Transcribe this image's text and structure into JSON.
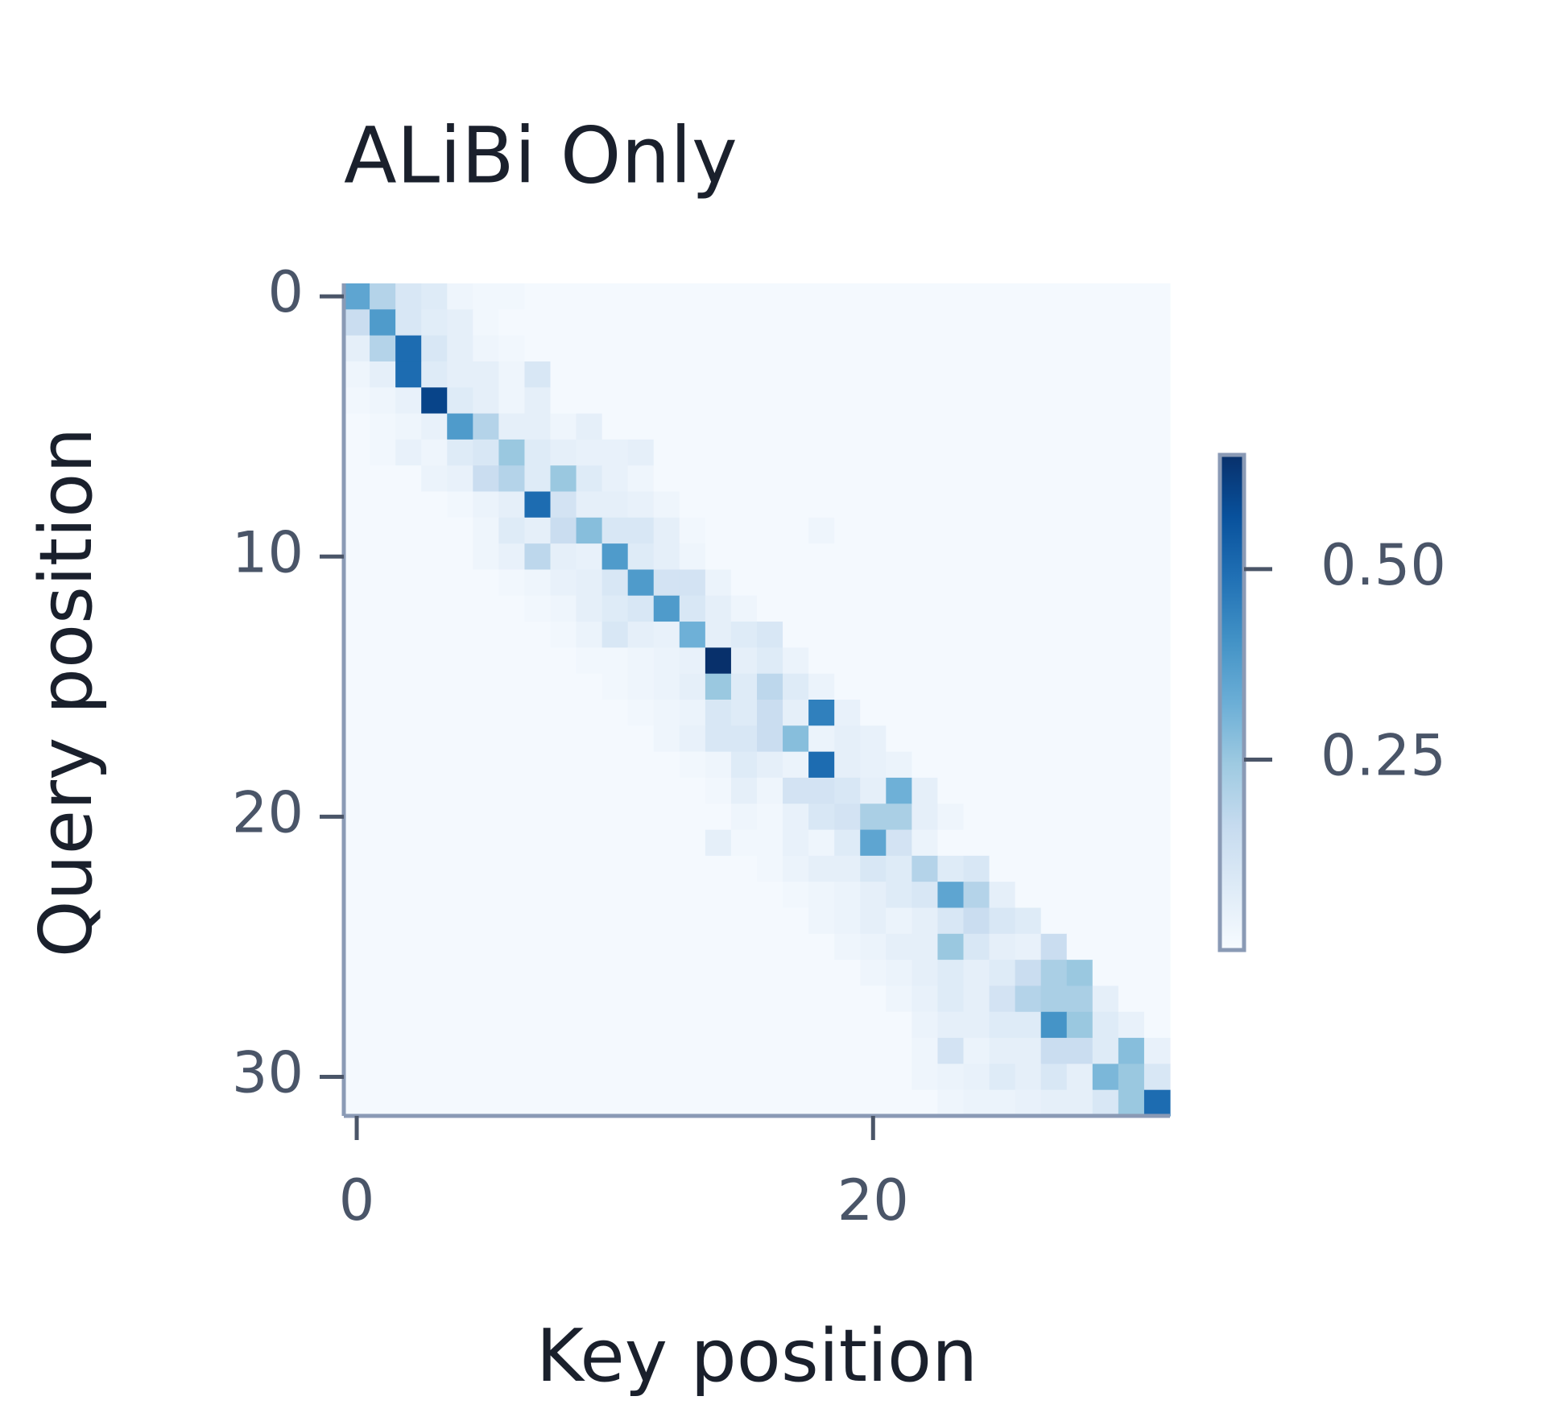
{
  "chart_data": {
    "type": "heatmap",
    "title": "ALiBi Only",
    "x_label": "Key position",
    "y_label": "Query position",
    "colormap": "Blues",
    "clim": [
      0,
      0.65
    ],
    "xlim": [
      -0.5,
      31.5
    ],
    "ylim": [
      -0.5,
      31.5
    ],
    "xticks": [
      0,
      20
    ],
    "yticks": [
      0,
      10,
      20,
      30
    ],
    "colorbar_ticks": [
      0.25,
      {
        "value": 0.5,
        "label": "0.50"
      }
    ],
    "z": [
      [
        0.35,
        0.2,
        0.1,
        0.08,
        0.03,
        0.02,
        0.02,
        0.01,
        0.01,
        0.01,
        0.01,
        0.01,
        0.01,
        0.01,
        0.01,
        0.01,
        0.01,
        0.01,
        0.01,
        0.01,
        0.01,
        0.01,
        0.01,
        0.01,
        0.01,
        0.01,
        0.01,
        0.01,
        0.01,
        0.01,
        0.01,
        0.01
      ],
      [
        0.15,
        0.38,
        0.1,
        0.07,
        0.06,
        0.02,
        0.01,
        0.01,
        0.01,
        0.01,
        0.01,
        0.01,
        0.01,
        0.01,
        0.01,
        0.01,
        0.01,
        0.01,
        0.01,
        0.01,
        0.01,
        0.01,
        0.01,
        0.01,
        0.01,
        0.01,
        0.01,
        0.01,
        0.01,
        0.01,
        0.01,
        0.01
      ],
      [
        0.06,
        0.2,
        0.5,
        0.1,
        0.06,
        0.03,
        0.02,
        0.01,
        0.01,
        0.01,
        0.01,
        0.01,
        0.01,
        0.01,
        0.01,
        0.01,
        0.01,
        0.01,
        0.01,
        0.01,
        0.01,
        0.01,
        0.01,
        0.01,
        0.01,
        0.01,
        0.01,
        0.01,
        0.01,
        0.01,
        0.01,
        0.01
      ],
      [
        0.03,
        0.06,
        0.5,
        0.08,
        0.06,
        0.06,
        0.03,
        0.1,
        0.01,
        0.01,
        0.01,
        0.01,
        0.01,
        0.01,
        0.01,
        0.01,
        0.01,
        0.01,
        0.01,
        0.01,
        0.01,
        0.01,
        0.01,
        0.01,
        0.01,
        0.01,
        0.01,
        0.01,
        0.01,
        0.01,
        0.01,
        0.01
      ],
      [
        0.02,
        0.03,
        0.05,
        0.6,
        0.08,
        0.06,
        0.03,
        0.06,
        0.01,
        0.01,
        0.01,
        0.01,
        0.01,
        0.01,
        0.01,
        0.01,
        0.01,
        0.01,
        0.01,
        0.01,
        0.01,
        0.01,
        0.01,
        0.01,
        0.01,
        0.01,
        0.01,
        0.01,
        0.01,
        0.01,
        0.01,
        0.01
      ],
      [
        0.01,
        0.02,
        0.03,
        0.05,
        0.38,
        0.2,
        0.06,
        0.06,
        0.03,
        0.06,
        0.01,
        0.01,
        0.01,
        0.01,
        0.01,
        0.01,
        0.01,
        0.01,
        0.01,
        0.01,
        0.01,
        0.01,
        0.01,
        0.01,
        0.01,
        0.01,
        0.01,
        0.01,
        0.01,
        0.01,
        0.01,
        0.01
      ],
      [
        0.01,
        0.02,
        0.05,
        0.03,
        0.08,
        0.1,
        0.25,
        0.08,
        0.06,
        0.05,
        0.05,
        0.06,
        0.01,
        0.01,
        0.01,
        0.01,
        0.01,
        0.01,
        0.01,
        0.01,
        0.01,
        0.01,
        0.01,
        0.01,
        0.01,
        0.01,
        0.01,
        0.01,
        0.01,
        0.01,
        0.01,
        0.01
      ],
      [
        0.01,
        0.01,
        0.01,
        0.04,
        0.05,
        0.15,
        0.2,
        0.08,
        0.25,
        0.08,
        0.05,
        0.03,
        0.01,
        0.01,
        0.01,
        0.01,
        0.01,
        0.01,
        0.01,
        0.01,
        0.01,
        0.01,
        0.01,
        0.01,
        0.01,
        0.01,
        0.01,
        0.01,
        0.01,
        0.01,
        0.01,
        0.01
      ],
      [
        0.01,
        0.01,
        0.01,
        0.01,
        0.02,
        0.04,
        0.06,
        0.5,
        0.12,
        0.06,
        0.06,
        0.05,
        0.03,
        0.01,
        0.01,
        0.01,
        0.01,
        0.01,
        0.01,
        0.01,
        0.01,
        0.01,
        0.01,
        0.01,
        0.01,
        0.01,
        0.01,
        0.01,
        0.01,
        0.01,
        0.01,
        0.01
      ],
      [
        0.01,
        0.01,
        0.01,
        0.01,
        0.01,
        0.03,
        0.08,
        0.06,
        0.15,
        0.28,
        0.1,
        0.1,
        0.06,
        0.02,
        0.01,
        0.01,
        0.01,
        0.01,
        0.03,
        0.01,
        0.01,
        0.01,
        0.01,
        0.01,
        0.01,
        0.01,
        0.01,
        0.01,
        0.01,
        0.01,
        0.01,
        0.01
      ],
      [
        0.01,
        0.01,
        0.01,
        0.01,
        0.01,
        0.03,
        0.05,
        0.18,
        0.06,
        0.05,
        0.38,
        0.08,
        0.06,
        0.03,
        0.01,
        0.01,
        0.01,
        0.01,
        0.01,
        0.01,
        0.01,
        0.01,
        0.01,
        0.01,
        0.01,
        0.01,
        0.01,
        0.01,
        0.01,
        0.01,
        0.01,
        0.01
      ],
      [
        0.01,
        0.01,
        0.01,
        0.01,
        0.01,
        0.01,
        0.02,
        0.03,
        0.05,
        0.06,
        0.1,
        0.38,
        0.12,
        0.12,
        0.04,
        0.01,
        0.01,
        0.01,
        0.01,
        0.01,
        0.01,
        0.01,
        0.01,
        0.01,
        0.01,
        0.01,
        0.01,
        0.01,
        0.01,
        0.01,
        0.01,
        0.01
      ],
      [
        0.01,
        0.01,
        0.01,
        0.01,
        0.01,
        0.01,
        0.01,
        0.02,
        0.03,
        0.06,
        0.08,
        0.1,
        0.38,
        0.1,
        0.06,
        0.03,
        0.01,
        0.01,
        0.01,
        0.01,
        0.01,
        0.01,
        0.01,
        0.01,
        0.01,
        0.01,
        0.01,
        0.01,
        0.01,
        0.01,
        0.01,
        0.01
      ],
      [
        0.01,
        0.01,
        0.01,
        0.01,
        0.01,
        0.01,
        0.01,
        0.01,
        0.02,
        0.04,
        0.1,
        0.06,
        0.05,
        0.32,
        0.06,
        0.08,
        0.1,
        0.01,
        0.01,
        0.01,
        0.01,
        0.01,
        0.01,
        0.01,
        0.01,
        0.01,
        0.01,
        0.01,
        0.01,
        0.01,
        0.01,
        0.01
      ],
      [
        0.01,
        0.01,
        0.01,
        0.01,
        0.01,
        0.01,
        0.01,
        0.01,
        0.01,
        0.02,
        0.02,
        0.03,
        0.04,
        0.05,
        0.65,
        0.06,
        0.08,
        0.04,
        0.01,
        0.01,
        0.01,
        0.01,
        0.01,
        0.01,
        0.01,
        0.01,
        0.01,
        0.01,
        0.01,
        0.01,
        0.01,
        0.01
      ],
      [
        0.01,
        0.01,
        0.01,
        0.01,
        0.01,
        0.01,
        0.01,
        0.01,
        0.01,
        0.01,
        0.02,
        0.03,
        0.04,
        0.06,
        0.25,
        0.08,
        0.18,
        0.08,
        0.04,
        0.01,
        0.01,
        0.01,
        0.01,
        0.01,
        0.01,
        0.01,
        0.01,
        0.01,
        0.01,
        0.01,
        0.01,
        0.01
      ],
      [
        0.01,
        0.01,
        0.01,
        0.01,
        0.01,
        0.01,
        0.01,
        0.01,
        0.01,
        0.01,
        0.01,
        0.02,
        0.03,
        0.04,
        0.1,
        0.08,
        0.15,
        0.06,
        0.45,
        0.05,
        0.01,
        0.01,
        0.01,
        0.01,
        0.01,
        0.01,
        0.01,
        0.01,
        0.01,
        0.01,
        0.01,
        0.01
      ],
      [
        0.01,
        0.01,
        0.01,
        0.01,
        0.01,
        0.01,
        0.01,
        0.01,
        0.01,
        0.01,
        0.01,
        0.01,
        0.03,
        0.05,
        0.1,
        0.1,
        0.15,
        0.28,
        0.04,
        0.06,
        0.05,
        0.01,
        0.01,
        0.01,
        0.01,
        0.01,
        0.01,
        0.01,
        0.01,
        0.01,
        0.01,
        0.01
      ],
      [
        0.01,
        0.01,
        0.01,
        0.01,
        0.01,
        0.01,
        0.01,
        0.01,
        0.01,
        0.01,
        0.01,
        0.01,
        0.01,
        0.02,
        0.03,
        0.08,
        0.06,
        0.04,
        0.5,
        0.06,
        0.05,
        0.04,
        0.01,
        0.01,
        0.01,
        0.01,
        0.01,
        0.01,
        0.01,
        0.01,
        0.01,
        0.01
      ],
      [
        0.01,
        0.01,
        0.01,
        0.01,
        0.01,
        0.01,
        0.01,
        0.01,
        0.01,
        0.01,
        0.01,
        0.01,
        0.01,
        0.01,
        0.02,
        0.06,
        0.03,
        0.12,
        0.12,
        0.1,
        0.06,
        0.32,
        0.06,
        0.01,
        0.01,
        0.01,
        0.01,
        0.01,
        0.01,
        0.01,
        0.01,
        0.01
      ],
      [
        0.01,
        0.01,
        0.01,
        0.01,
        0.01,
        0.01,
        0.01,
        0.01,
        0.01,
        0.01,
        0.01,
        0.01,
        0.01,
        0.01,
        0.01,
        0.03,
        0.02,
        0.05,
        0.1,
        0.12,
        0.22,
        0.22,
        0.06,
        0.03,
        0.01,
        0.01,
        0.01,
        0.01,
        0.01,
        0.01,
        0.01,
        0.01
      ],
      [
        0.01,
        0.01,
        0.01,
        0.01,
        0.01,
        0.01,
        0.01,
        0.01,
        0.01,
        0.01,
        0.01,
        0.01,
        0.01,
        0.01,
        0.06,
        0.02,
        0.02,
        0.05,
        0.03,
        0.08,
        0.35,
        0.12,
        0.04,
        0.01,
        0.01,
        0.01,
        0.01,
        0.01,
        0.01,
        0.01,
        0.01,
        0.01
      ],
      [
        0.01,
        0.01,
        0.01,
        0.01,
        0.01,
        0.01,
        0.01,
        0.01,
        0.01,
        0.01,
        0.01,
        0.01,
        0.01,
        0.01,
        0.01,
        0.01,
        0.02,
        0.04,
        0.06,
        0.06,
        0.1,
        0.08,
        0.2,
        0.08,
        0.1,
        0.01,
        0.01,
        0.01,
        0.01,
        0.01,
        0.01,
        0.01
      ],
      [
        0.01,
        0.01,
        0.01,
        0.01,
        0.01,
        0.01,
        0.01,
        0.01,
        0.01,
        0.01,
        0.01,
        0.01,
        0.01,
        0.01,
        0.01,
        0.01,
        0.01,
        0.02,
        0.03,
        0.04,
        0.06,
        0.08,
        0.1,
        0.35,
        0.2,
        0.06,
        0.01,
        0.01,
        0.01,
        0.01,
        0.01,
        0.01
      ],
      [
        0.01,
        0.01,
        0.01,
        0.01,
        0.01,
        0.01,
        0.01,
        0.01,
        0.01,
        0.01,
        0.01,
        0.01,
        0.01,
        0.01,
        0.01,
        0.01,
        0.01,
        0.01,
        0.03,
        0.04,
        0.06,
        0.04,
        0.06,
        0.1,
        0.15,
        0.1,
        0.08,
        0.01,
        0.01,
        0.01,
        0.01,
        0.01
      ],
      [
        0.01,
        0.01,
        0.01,
        0.01,
        0.01,
        0.01,
        0.01,
        0.01,
        0.01,
        0.01,
        0.01,
        0.01,
        0.01,
        0.01,
        0.01,
        0.01,
        0.01,
        0.01,
        0.01,
        0.03,
        0.04,
        0.06,
        0.06,
        0.25,
        0.1,
        0.06,
        0.05,
        0.15,
        0.01,
        0.01,
        0.01,
        0.01
      ],
      [
        0.01,
        0.01,
        0.01,
        0.01,
        0.01,
        0.01,
        0.01,
        0.01,
        0.01,
        0.01,
        0.01,
        0.01,
        0.01,
        0.01,
        0.01,
        0.01,
        0.01,
        0.01,
        0.01,
        0.01,
        0.03,
        0.04,
        0.06,
        0.08,
        0.06,
        0.08,
        0.15,
        0.22,
        0.25,
        0.01,
        0.01,
        0.01
      ],
      [
        0.01,
        0.01,
        0.01,
        0.01,
        0.01,
        0.01,
        0.01,
        0.01,
        0.01,
        0.01,
        0.01,
        0.01,
        0.01,
        0.01,
        0.01,
        0.01,
        0.01,
        0.01,
        0.01,
        0.01,
        0.01,
        0.03,
        0.05,
        0.08,
        0.06,
        0.12,
        0.2,
        0.22,
        0.22,
        0.06,
        0.01,
        0.01
      ],
      [
        0.01,
        0.01,
        0.01,
        0.01,
        0.01,
        0.01,
        0.01,
        0.01,
        0.01,
        0.01,
        0.01,
        0.01,
        0.01,
        0.01,
        0.01,
        0.01,
        0.01,
        0.01,
        0.01,
        0.01,
        0.01,
        0.01,
        0.04,
        0.06,
        0.06,
        0.08,
        0.08,
        0.4,
        0.25,
        0.08,
        0.05,
        0.01
      ],
      [
        0.01,
        0.01,
        0.01,
        0.01,
        0.01,
        0.01,
        0.01,
        0.01,
        0.01,
        0.01,
        0.01,
        0.01,
        0.01,
        0.01,
        0.01,
        0.01,
        0.01,
        0.01,
        0.01,
        0.01,
        0.01,
        0.01,
        0.03,
        0.12,
        0.04,
        0.06,
        0.06,
        0.15,
        0.15,
        0.08,
        0.28,
        0.05
      ],
      [
        0.01,
        0.01,
        0.01,
        0.01,
        0.01,
        0.01,
        0.01,
        0.01,
        0.01,
        0.01,
        0.01,
        0.01,
        0.01,
        0.01,
        0.01,
        0.01,
        0.01,
        0.01,
        0.01,
        0.01,
        0.01,
        0.01,
        0.03,
        0.04,
        0.05,
        0.08,
        0.06,
        0.1,
        0.06,
        0.3,
        0.25,
        0.1
      ],
      [
        0.01,
        0.01,
        0.01,
        0.01,
        0.01,
        0.01,
        0.01,
        0.01,
        0.01,
        0.01,
        0.01,
        0.01,
        0.01,
        0.01,
        0.01,
        0.01,
        0.01,
        0.01,
        0.01,
        0.01,
        0.01,
        0.01,
        0.01,
        0.03,
        0.04,
        0.04,
        0.05,
        0.06,
        0.06,
        0.1,
        0.25,
        0.5
      ]
    ]
  }
}
